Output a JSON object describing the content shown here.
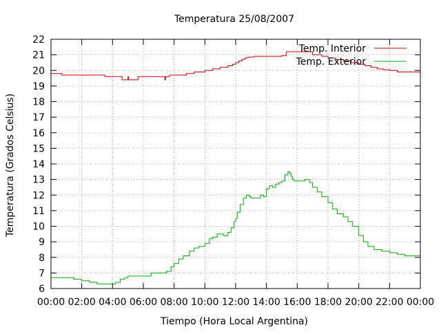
{
  "chart_data": {
    "type": "line",
    "title": "Temperatura 25/08/2007",
    "xlabel": "Tiempo (Hora Local Argentina)",
    "ylabel": "Temperatura (Grados Celsius)",
    "xlim": [
      0,
      24
    ],
    "ylim": [
      6,
      22
    ],
    "x_ticks": [
      {
        "value": 0,
        "label": "00:00"
      },
      {
        "value": 2,
        "label": "02:00"
      },
      {
        "value": 4,
        "label": "04:00"
      },
      {
        "value": 6,
        "label": "06:00"
      },
      {
        "value": 8,
        "label": "08:00"
      },
      {
        "value": 10,
        "label": "10:00"
      },
      {
        "value": 12,
        "label": "12:00"
      },
      {
        "value": 14,
        "label": "14:00"
      },
      {
        "value": 16,
        "label": "16:00"
      },
      {
        "value": 18,
        "label": "18:00"
      },
      {
        "value": 20,
        "label": "20:00"
      },
      {
        "value": 22,
        "label": "22:00"
      },
      {
        "value": 24,
        "label": "00:00"
      }
    ],
    "y_ticks": [
      6,
      7,
      8,
      9,
      10,
      11,
      12,
      13,
      14,
      15,
      16,
      17,
      18,
      19,
      20,
      21,
      22
    ],
    "grid": true,
    "legend_position": "top-right",
    "series": [
      {
        "name": "Temp. Interior",
        "color": "#cc0000",
        "x": [
          0,
          0.25,
          0.7,
          3.5,
          4.6,
          4.62,
          4.95,
          5.0,
          5.05,
          5.1,
          5.6,
          5.65,
          7.35,
          7.4,
          7.45,
          7.5,
          7.7,
          8.8,
          9.3,
          10.0,
          10.5,
          11.0,
          11.5,
          11.8,
          12.0,
          12.2,
          12.4,
          12.6,
          12.8,
          13.2,
          14.0,
          15.0,
          15.3,
          16.0,
          17.0,
          17.6,
          18.0,
          18.5,
          19.0,
          19.5,
          20.0,
          20.4,
          20.8,
          21.2,
          21.6,
          22.0,
          22.5,
          23.0,
          24.0
        ],
        "y": [
          19.8,
          19.8,
          19.7,
          19.6,
          19.6,
          19.4,
          19.4,
          19.6,
          19.4,
          19.4,
          19.4,
          19.6,
          19.6,
          19.4,
          19.6,
          19.6,
          19.7,
          19.8,
          19.9,
          20.0,
          20.1,
          20.2,
          20.3,
          20.4,
          20.5,
          20.6,
          20.7,
          20.8,
          20.85,
          20.9,
          20.9,
          20.95,
          21.2,
          21.2,
          21.0,
          20.9,
          20.8,
          20.7,
          20.6,
          20.5,
          20.4,
          20.3,
          20.2,
          20.1,
          20.05,
          20.0,
          19.9,
          19.9,
          19.9
        ]
      },
      {
        "name": "Temp. Exterior",
        "color": "#00aa00",
        "x": [
          0,
          0.5,
          1.0,
          1.5,
          2.0,
          2.5,
          3.0,
          3.3,
          3.5,
          4.0,
          4.2,
          4.5,
          4.8,
          5.0,
          5.5,
          6.0,
          6.5,
          7.0,
          7.5,
          7.8,
          8.0,
          8.3,
          8.6,
          9.0,
          9.3,
          9.6,
          10.0,
          10.3,
          10.5,
          10.8,
          11.0,
          11.2,
          11.5,
          11.7,
          11.9,
          12.0,
          12.1,
          12.3,
          12.5,
          12.7,
          12.9,
          13.0,
          13.3,
          13.6,
          13.8,
          14.0,
          14.2,
          14.4,
          14.6,
          14.8,
          15.0,
          15.2,
          15.4,
          15.5,
          15.6,
          15.7,
          15.8,
          16.0,
          16.2,
          16.5,
          16.8,
          17.0,
          17.3,
          17.6,
          18.0,
          18.3,
          18.6,
          19.0,
          19.3,
          19.6,
          20.0,
          20.3,
          20.6,
          21.0,
          21.5,
          22.0,
          22.5,
          23.0,
          23.5,
          24.0
        ],
        "y": [
          6.7,
          6.7,
          6.7,
          6.6,
          6.5,
          6.4,
          6.3,
          6.3,
          6.3,
          6.3,
          6.4,
          6.6,
          6.7,
          6.8,
          6.8,
          6.8,
          7.0,
          7.0,
          7.1,
          7.4,
          7.6,
          7.9,
          8.1,
          8.4,
          8.6,
          8.7,
          8.9,
          9.2,
          9.3,
          9.5,
          9.5,
          9.4,
          9.6,
          9.9,
          10.3,
          10.5,
          10.9,
          11.4,
          11.8,
          12.0,
          11.9,
          11.8,
          11.8,
          12.0,
          11.9,
          12.4,
          12.6,
          12.5,
          12.7,
          12.8,
          12.9,
          13.3,
          13.5,
          13.4,
          13.2,
          13.0,
          12.9,
          12.9,
          12.9,
          13.0,
          12.8,
          12.5,
          12.2,
          11.9,
          11.5,
          11.1,
          10.8,
          10.6,
          10.3,
          10.0,
          9.4,
          9.0,
          8.7,
          8.5,
          8.4,
          8.3,
          8.2,
          8.1,
          8.1,
          8.2
        ]
      }
    ]
  }
}
